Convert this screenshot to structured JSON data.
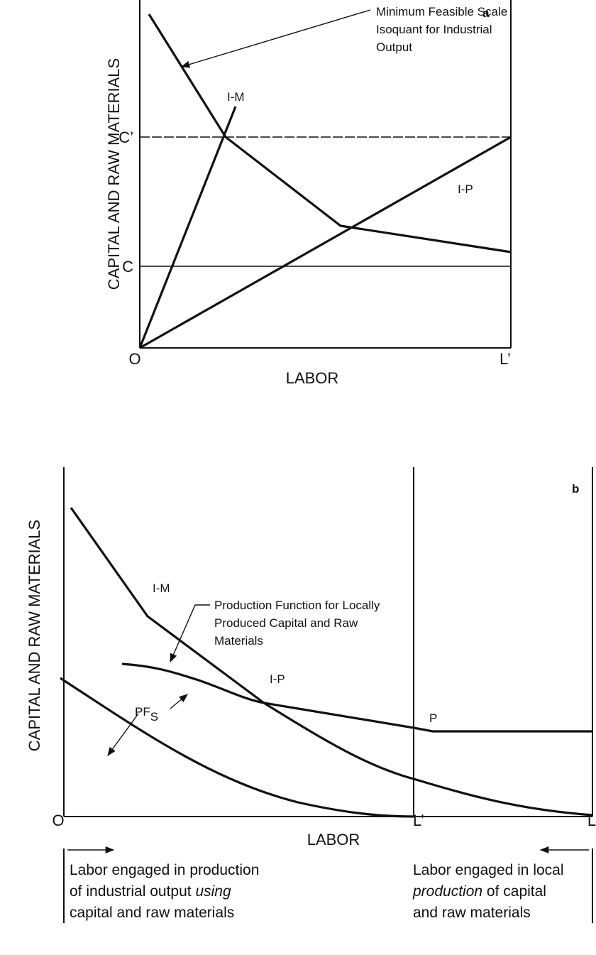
{
  "panel_a": {
    "label": "a",
    "y_axis_label": "CAPITAL AND RAW MATERIALS",
    "x_axis_label": "LABOR",
    "origin": "O",
    "x_end": "L’",
    "y_levels": [
      "C’",
      "C"
    ],
    "curve_labels": [
      "I-M",
      "I-P"
    ],
    "annotation": [
      "Minimum Feasible Scale",
      "Isoquant for Industrial",
      "Output"
    ]
  },
  "panel_b": {
    "label": "b",
    "y_axis_label": "CAPITAL AND RAW MATERIALS",
    "x_axis_label": "LABOR",
    "origin": "O",
    "x_marks": [
      "L’",
      "L"
    ],
    "curve_labels": [
      "I-M",
      "I-P",
      "P"
    ],
    "pf_label": {
      "main": "PF",
      "sub": "S"
    },
    "annotation": [
      "Production Function for Locally",
      "Produced Capital and Raw",
      "Materials"
    ],
    "left_note": {
      "line1": "Labor engaged in production",
      "line2": "of industrial output",
      "line2_italic": "using",
      "line3": "capital and raw materials"
    },
    "right_note": {
      "line1": "Labor engaged in local",
      "line2_italic": "production",
      "line2": "of capital",
      "line3": "and raw materials"
    }
  }
}
